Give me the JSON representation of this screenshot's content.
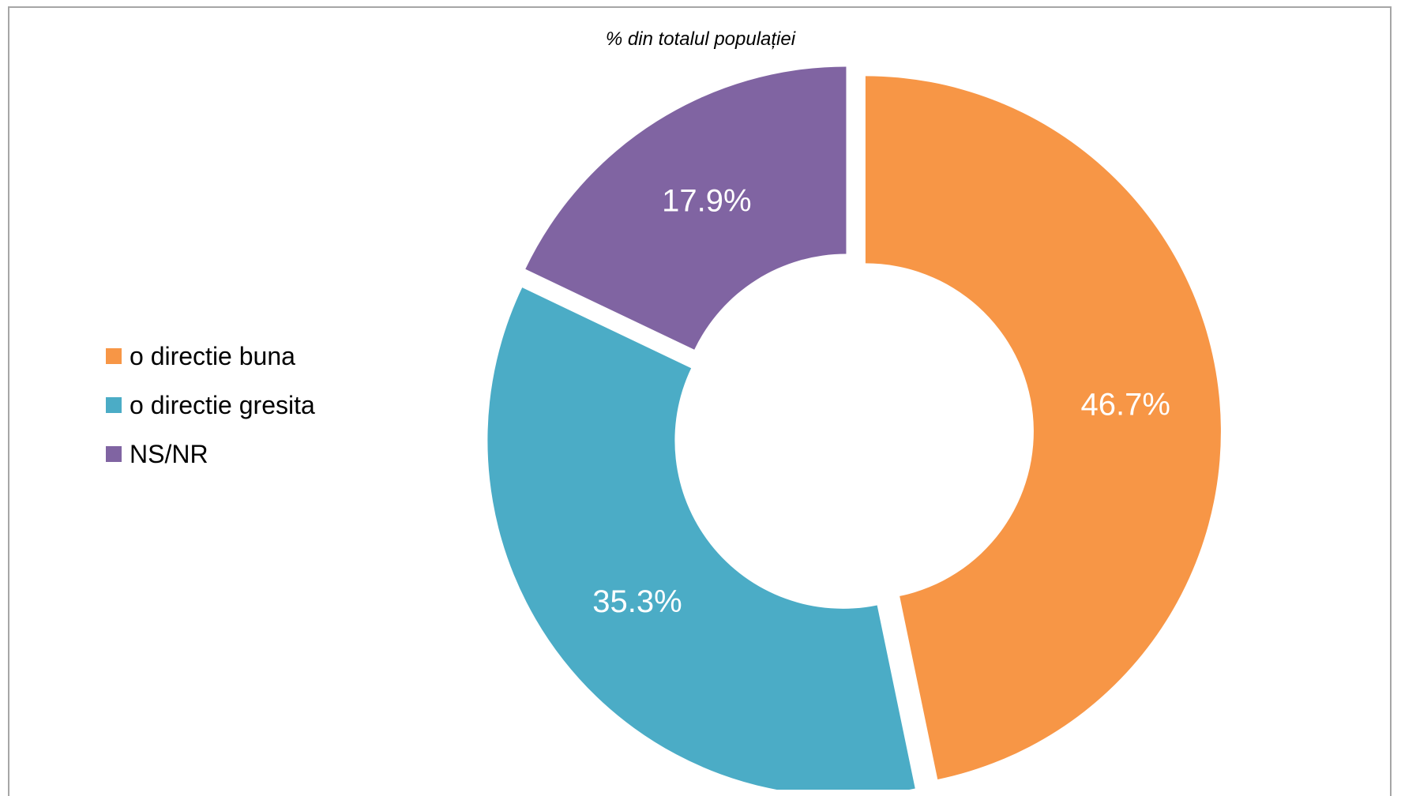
{
  "chart_data": {
    "type": "pie",
    "subtitle": "% din totalul populației",
    "series": [
      {
        "name": "o directie buna",
        "value": 46.7,
        "label": "46.7%",
        "color": "#F79646"
      },
      {
        "name": "o directie gresita",
        "value": 35.3,
        "label": "35.3%",
        "color": "#4BACC6"
      },
      {
        "name": "NS/NR",
        "value": 17.9,
        "label": "17.9%",
        "color": "#8064A2"
      }
    ],
    "donut": true,
    "exploded": true,
    "legend_position": "left"
  }
}
